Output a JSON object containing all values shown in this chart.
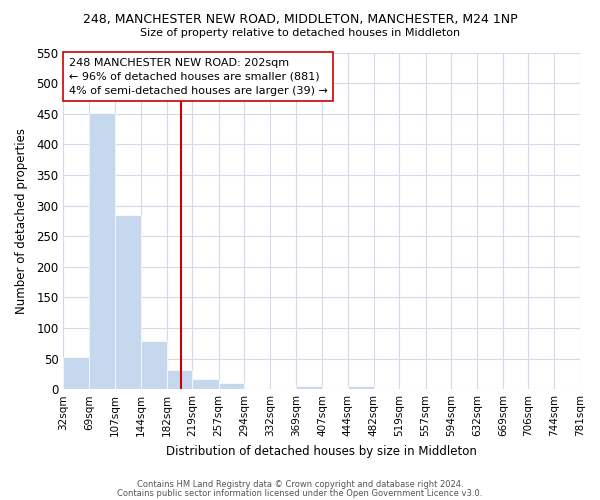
{
  "title": "248, MANCHESTER NEW ROAD, MIDDLETON, MANCHESTER, M24 1NP",
  "subtitle": "Size of property relative to detached houses in Middleton",
  "xlabel": "Distribution of detached houses by size in Middleton",
  "ylabel": "Number of detached properties",
  "bar_color": "#c5d8ed",
  "background_color": "#ffffff",
  "grid_color": "#d0daeb",
  "vline_x": 202,
  "vline_color": "#cc0000",
  "bin_edges": [
    32,
    69,
    107,
    144,
    182,
    219,
    257,
    294,
    332,
    369,
    407,
    444,
    482,
    519,
    557,
    594,
    632,
    669,
    706,
    744,
    781
  ],
  "bar_heights": [
    53,
    451,
    284,
    79,
    32,
    16,
    10,
    0,
    0,
    5,
    0,
    5,
    0,
    0,
    0,
    0,
    0,
    0,
    0,
    0
  ],
  "ylim": [
    0,
    550
  ],
  "yticks": [
    0,
    50,
    100,
    150,
    200,
    250,
    300,
    350,
    400,
    450,
    500,
    550
  ],
  "xtick_labels": [
    "32sqm",
    "69sqm",
    "107sqm",
    "144sqm",
    "182sqm",
    "219sqm",
    "257sqm",
    "294sqm",
    "332sqm",
    "369sqm",
    "407sqm",
    "444sqm",
    "482sqm",
    "519sqm",
    "557sqm",
    "594sqm",
    "632sqm",
    "669sqm",
    "706sqm",
    "744sqm",
    "781sqm"
  ],
  "annotation_title": "248 MANCHESTER NEW ROAD: 202sqm",
  "annotation_line1": "← 96% of detached houses are smaller (881)",
  "annotation_line2": "4% of semi-detached houses are larger (39) →",
  "footer_line1": "Contains HM Land Registry data © Crown copyright and database right 2024.",
  "footer_line2": "Contains public sector information licensed under the Open Government Licence v3.0."
}
